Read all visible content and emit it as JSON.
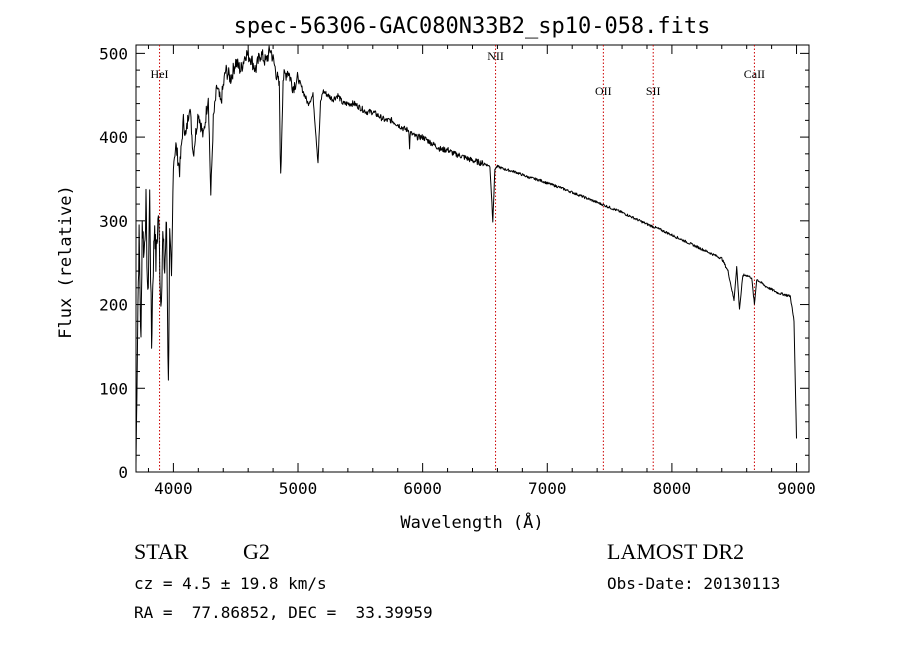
{
  "chart_data": {
    "type": "line",
    "title": "spec-56306-GAC080N33B2_sp10-058.fits",
    "xlabel": "Wavelength (Å)",
    "ylabel": "Flux (relative)",
    "xlim": [
      3700,
      9100
    ],
    "ylim": [
      0,
      510
    ],
    "x_ticks": [
      4000,
      5000,
      6000,
      7000,
      8000,
      9000
    ],
    "y_ticks": [
      0,
      100,
      200,
      300,
      400,
      500
    ],
    "grid": false,
    "line_color": "#000000",
    "marker_color": "#cc0000",
    "series": [
      {
        "x": [
          3700,
          3715,
          3725,
          3740,
          3750,
          3765,
          3780,
          3795,
          3810,
          3825,
          3835,
          3850,
          3860,
          3880,
          3900,
          3915,
          3930,
          3945,
          3960,
          3970,
          3985,
          4000,
          4020,
          4050,
          4080,
          4100,
          4130,
          4160,
          4200,
          4240,
          4280,
          4300,
          4320,
          4350,
          4380,
          4420,
          4460,
          4500,
          4540,
          4580,
          4620,
          4660,
          4700,
          4740,
          4780,
          4820,
          4850,
          4861,
          4880,
          4920,
          4960,
          5000,
          5040,
          5080,
          5120,
          5160,
          5180,
          5200,
          5240,
          5280,
          5320,
          5360,
          5400,
          5450,
          5500,
          5550,
          5600,
          5650,
          5700,
          5750,
          5800,
          5850,
          5890,
          5895,
          5900,
          5950,
          6000,
          6050,
          6100,
          6150,
          6200,
          6250,
          6300,
          6350,
          6400,
          6450,
          6500,
          6540,
          6563,
          6580,
          6600,
          6650,
          6700,
          6750,
          6800,
          6850,
          6900,
          6950,
          7000,
          7100,
          7200,
          7300,
          7400,
          7500,
          7600,
          7700,
          7800,
          7900,
          8000,
          8100,
          8200,
          8300,
          8400,
          8450,
          8498,
          8520,
          8542,
          8570,
          8600,
          8640,
          8662,
          8680,
          8700,
          8750,
          8800,
          8850,
          8900,
          8950,
          8980,
          9000
        ],
        "values": [
          10,
          200,
          280,
          150,
          300,
          260,
          320,
          200,
          330,
          150,
          230,
          300,
          250,
          310,
          200,
          280,
          240,
          300,
          100,
          280,
          220,
          370,
          390,
          360,
          420,
          400,
          440,
          380,
          430,
          400,
          450,
          330,
          420,
          460,
          440,
          480,
          470,
          490,
          480,
          500,
          495,
          480,
          500,
          490,
          505,
          480,
          460,
          350,
          470,
          480,
          460,
          470,
          455,
          440,
          450,
          370,
          440,
          455,
          450,
          445,
          450,
          440,
          440,
          440,
          435,
          430,
          430,
          425,
          420,
          420,
          415,
          410,
          408,
          385,
          405,
          400,
          400,
          395,
          390,
          385,
          385,
          380,
          378,
          375,
          372,
          370,
          368,
          365,
          300,
          362,
          365,
          362,
          360,
          358,
          355,
          352,
          350,
          348,
          345,
          340,
          334,
          328,
          322,
          316,
          310,
          303,
          296,
          290,
          283,
          276,
          269,
          262,
          255,
          240,
          205,
          245,
          195,
          235,
          235,
          232,
          200,
          230,
          228,
          222,
          218,
          214,
          212,
          210,
          180,
          40
        ]
      }
    ],
    "lines": [
      {
        "label": "HeI",
        "x": 3889
      },
      {
        "label": "NII",
        "x": 6585
      },
      {
        "label": "OII",
        "x": 7450
      },
      {
        "label": "SII",
        "x": 7850
      },
      {
        "label": "CaII",
        "x": 8662
      }
    ]
  },
  "info": {
    "object_class": "STAR",
    "subclass": "G2",
    "survey": "LAMOST DR2",
    "redshift": "cz = 4.5 ± 19.8 km/s",
    "obs_date": "Obs-Date: 20130113",
    "coords": "RA =  77.86852, DEC =  33.39959"
  }
}
